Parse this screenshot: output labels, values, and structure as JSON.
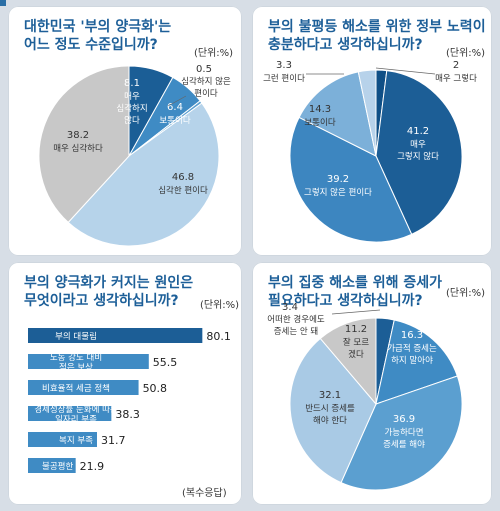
{
  "panels": {
    "p1": {
      "title_1": "대한민국 '부의 양극화'는",
      "title_2": "어느 정도 수준입니까?",
      "unit": "(단위:%)"
    },
    "p2": {
      "title_1": "부의 불평등 해소를 위한 정부 노력이",
      "title_2": "충분하다고 생각하십니까?",
      "unit": "(단위:%)"
    },
    "p3": {
      "title_1": "부의 양극화가 커지는 원인은",
      "title_2": "무엇이라고 생각하십니까?",
      "unit": "(단위:%)",
      "note": "(복수응답)"
    },
    "p4": {
      "title_1": "부의 집중 해소를 위해 증세가",
      "title_2": "필요하다고 생각하십니까?",
      "unit": "(단위:%)"
    }
  },
  "chart_data": [
    {
      "type": "pie",
      "title": "대한민국 '부의 양극화'는 어느 정도 수준입니까?",
      "unit": "%",
      "slices": [
        {
          "label": "매우 심각하지 않다",
          "value": 8.1,
          "color": "#1b5e96"
        },
        {
          "label": "보통이다",
          "value": 6.4,
          "color": "#3f8bc4"
        },
        {
          "label": "심각하지 않은 편이다",
          "value": 0.5,
          "color": "#5b9fd0"
        },
        {
          "label": "심각한 편이다",
          "value": 46.8,
          "color": "#b6d3ea"
        },
        {
          "label": "매우 심각하다",
          "value": 38.2,
          "color": "#c8c8c8"
        }
      ]
    },
    {
      "type": "pie",
      "title": "부의 불평등 해소를 위한 정부 노력이 충분하다고 생각하십니까?",
      "unit": "%",
      "slices": [
        {
          "label": "매우 그렇다",
          "value": 2,
          "color": "#0f4f86"
        },
        {
          "label": "매우 그렇지 않다",
          "value": 41.2,
          "color": "#1c5e96"
        },
        {
          "label": "그렇지 않은 편이다",
          "value": 39.2,
          "color": "#3d86c0"
        },
        {
          "label": "보통이다",
          "value": 14.3,
          "color": "#7cb0d9"
        },
        {
          "label": "그런 편이다",
          "value": 3.3,
          "color": "#b7d2ea"
        }
      ]
    },
    {
      "type": "bar",
      "orientation": "horizontal",
      "title": "부의 양극화가 커지는 원인은 무엇이라고 생각하십니까?",
      "unit": "%",
      "categories": [
        "부의 대물림",
        "노동 강도 대비 적은 보상",
        "비효율적 세금 정책",
        "경제성장률 둔화에 따른 일자리 부족",
        "복지 부족",
        "불공평한 교육 기회"
      ],
      "values": [
        80.1,
        55.5,
        50.8,
        38.3,
        31.7,
        21.9
      ],
      "colors": [
        "#1c5e96",
        "#3f8bc4",
        "#3f8bc4",
        "#3f8bc4",
        "#3f8bc4",
        "#3f8bc4"
      ],
      "xlim": [
        0,
        85
      ],
      "note": "(복수응답)"
    },
    {
      "type": "pie",
      "title": "부의 집중 해소를 위해 증세가 필요하다고 생각하십니까?",
      "unit": "%",
      "slices": [
        {
          "label": "어떠한 경우에도 증세는 안 돼",
          "value": 3.4,
          "color": "#1c5e96"
        },
        {
          "label": "가급적 증세는 하지 말아야",
          "value": 16.3,
          "color": "#3f8bc4"
        },
        {
          "label": "가능하다면 증세를 해야",
          "value": 36.9,
          "color": "#5b9fd0"
        },
        {
          "label": "반드시 증세를 해야 한다",
          "value": 32.1,
          "color": "#a9cae5"
        },
        {
          "label": "잘 모르겠다",
          "value": 11.2,
          "color": "#c8c8c8"
        }
      ]
    }
  ]
}
